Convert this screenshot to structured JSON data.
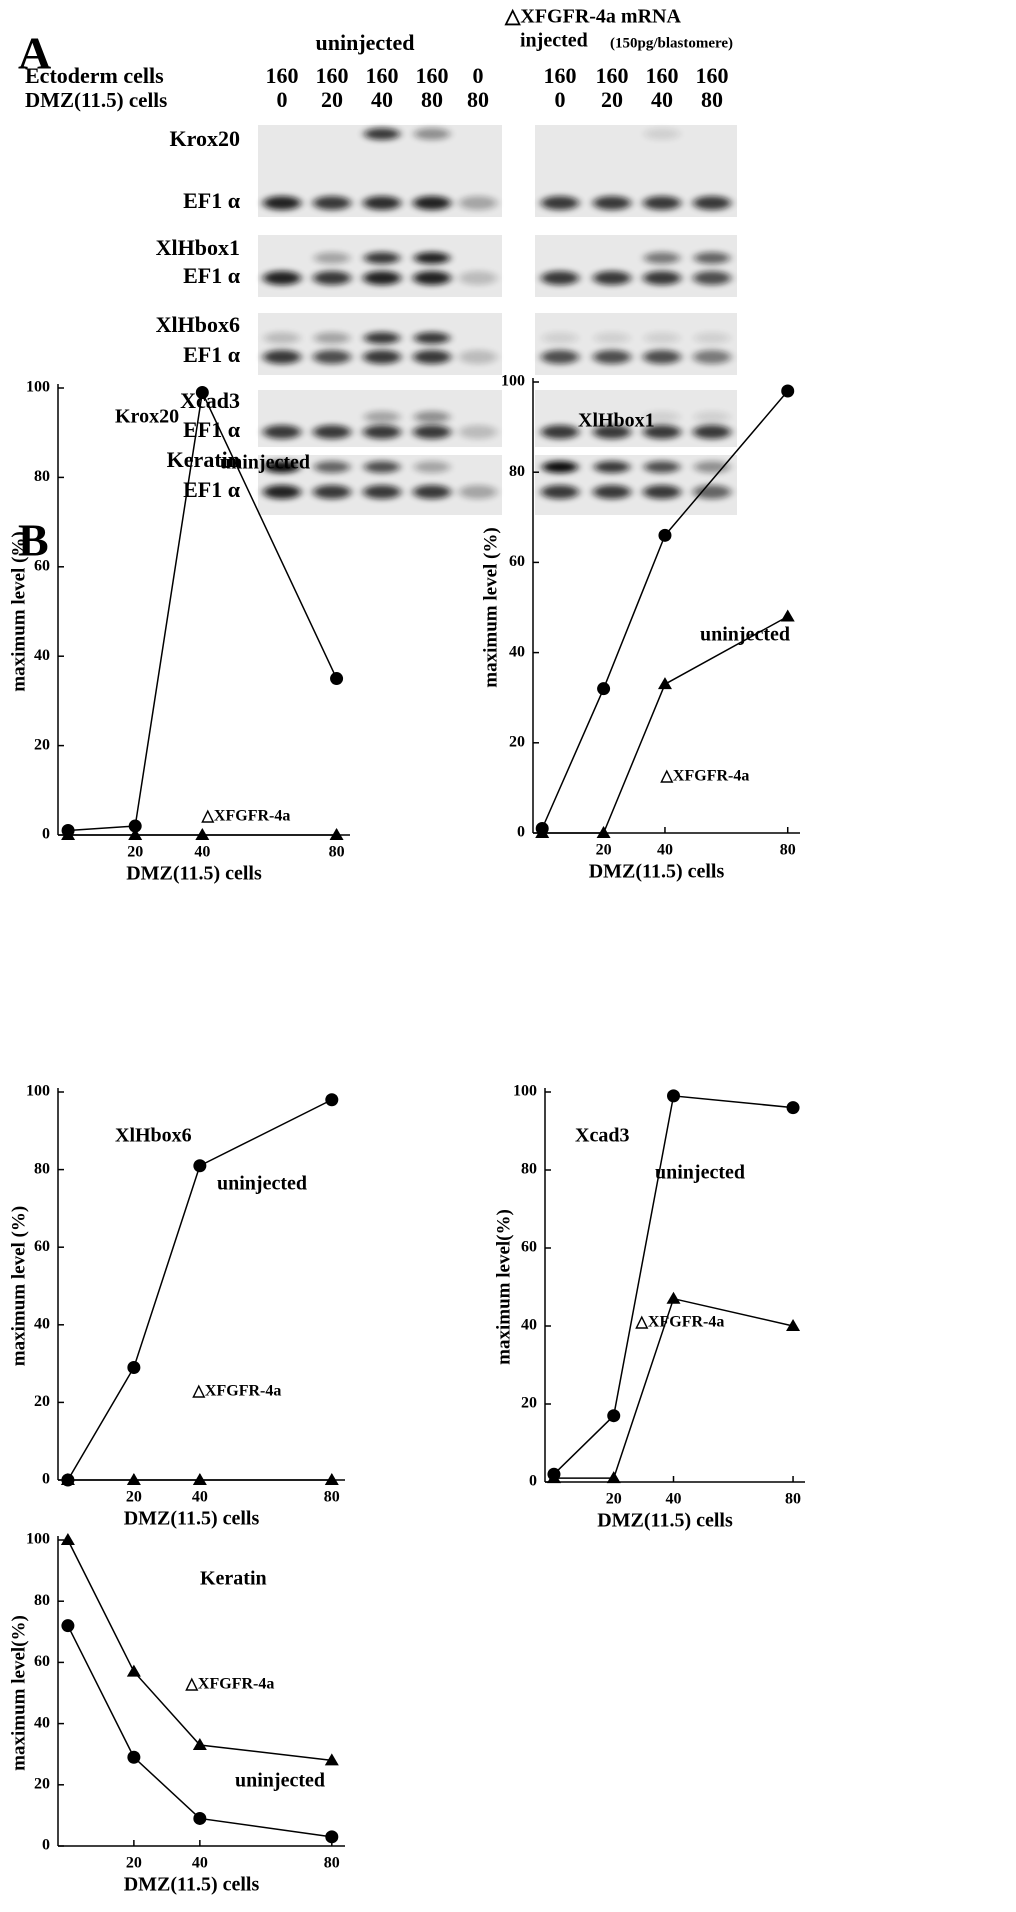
{
  "panel_a": {
    "label": "A",
    "headers": {
      "uninjected": "uninjected",
      "injected_line1": "△XFGFR-4a mRNA",
      "injected_line2": "injected",
      "injected_note": "(150pg/blastomere)"
    },
    "row_labels": [
      "Ectoderm cells",
      "DMZ(11.5) cells"
    ],
    "uninjected": {
      "ectoderm": [
        160,
        160,
        160,
        160,
        0
      ],
      "dmz": [
        0,
        20,
        40,
        80,
        80
      ]
    },
    "injected": {
      "ectoderm": [
        160,
        160,
        160,
        160
      ],
      "dmz": [
        0,
        20,
        40,
        80
      ]
    },
    "gels": [
      {
        "gene": "Krox20",
        "control": "EF1 α"
      },
      {
        "gene": "XlHbox1",
        "control": "EF1 α"
      },
      {
        "gene": "XlHbox6",
        "control": "EF1 α"
      },
      {
        "gene": "Xcad3",
        "control": "EF1 α"
      },
      {
        "gene": "Keratin",
        "control": "EF1 α"
      }
    ]
  },
  "panel_b": {
    "label": "B"
  },
  "chart_data": [
    {
      "type": "line",
      "title": "Krox20",
      "xlabel": "DMZ(11.5) cells",
      "ylabel": "maximum level (%)",
      "x": [
        0,
        20,
        40,
        80
      ],
      "xlim": [
        -3,
        84
      ],
      "xticks": [
        20,
        40,
        80
      ],
      "ylim": [
        0,
        100
      ],
      "yticks": [
        0,
        20,
        40,
        60,
        80,
        100
      ],
      "series": [
        {
          "name": "uninjected",
          "marker": "circle",
          "color": "#000000",
          "values": [
            1,
            2,
            99,
            35
          ]
        },
        {
          "name": "△XFGFR-4a",
          "marker": "triangle",
          "color": "#000000",
          "values": [
            0,
            0,
            0,
            0
          ]
        }
      ]
    },
    {
      "type": "line",
      "title": "XlHbox1",
      "xlabel": "DMZ(11.5) cells",
      "ylabel": "maximum level (%)",
      "x": [
        0,
        20,
        40,
        80
      ],
      "xlim": [
        -3,
        84
      ],
      "xticks": [
        20,
        40,
        80
      ],
      "ylim": [
        0,
        100
      ],
      "yticks": [
        0,
        20,
        40,
        60,
        80,
        100
      ],
      "series": [
        {
          "name": "uninjected",
          "marker": "circle",
          "color": "#000000",
          "values": [
            1,
            32,
            66,
            98
          ]
        },
        {
          "name": "△XFGFR-4a",
          "marker": "triangle",
          "color": "#000000",
          "values": [
            0,
            0,
            33,
            48
          ]
        }
      ]
    },
    {
      "type": "line",
      "title": "XlHbox6",
      "xlabel": "DMZ(11.5) cells",
      "ylabel": "maximum level (%)",
      "x": [
        0,
        20,
        40,
        80
      ],
      "xlim": [
        -3,
        84
      ],
      "xticks": [
        20,
        40,
        80
      ],
      "ylim": [
        0,
        100
      ],
      "yticks": [
        0,
        20,
        40,
        60,
        80,
        100
      ],
      "series": [
        {
          "name": "uninjected",
          "marker": "circle",
          "color": "#000000",
          "values": [
            0,
            29,
            81,
            98
          ]
        },
        {
          "name": "△XFGFR-4a",
          "marker": "triangle",
          "color": "#000000",
          "values": [
            0,
            0,
            0,
            0
          ]
        }
      ]
    },
    {
      "type": "line",
      "title": "Xcad3",
      "xlabel": "DMZ(11.5) cells",
      "ylabel": "maximum level(%)",
      "x": [
        0,
        20,
        40,
        80
      ],
      "xlim": [
        -3,
        84
      ],
      "xticks": [
        20,
        40,
        80
      ],
      "ylim": [
        0,
        100
      ],
      "yticks": [
        0,
        20,
        40,
        60,
        80,
        100
      ],
      "series": [
        {
          "name": "uninjected",
          "marker": "circle",
          "color": "#000000",
          "values": [
            2,
            17,
            99,
            96
          ]
        },
        {
          "name": "△XFGFR-4a",
          "marker": "triangle",
          "color": "#000000",
          "values": [
            1,
            1,
            47,
            40
          ]
        }
      ]
    },
    {
      "type": "line",
      "title": "Keratin",
      "xlabel": "DMZ(11.5) cells",
      "ylabel": "maximum level(%)",
      "x": [
        0,
        20,
        40,
        80
      ],
      "xlim": [
        -3,
        84
      ],
      "xticks": [
        20,
        40,
        80
      ],
      "ylim": [
        0,
        100
      ],
      "yticks": [
        0,
        20,
        40,
        60,
        80,
        100
      ],
      "series": [
        {
          "name": "uninjected",
          "marker": "circle",
          "color": "#000000",
          "values": [
            72,
            29,
            9,
            3
          ]
        },
        {
          "name": "△XFGFR-4a",
          "marker": "triangle",
          "color": "#000000",
          "values": [
            100,
            57,
            33,
            28
          ]
        }
      ]
    }
  ]
}
